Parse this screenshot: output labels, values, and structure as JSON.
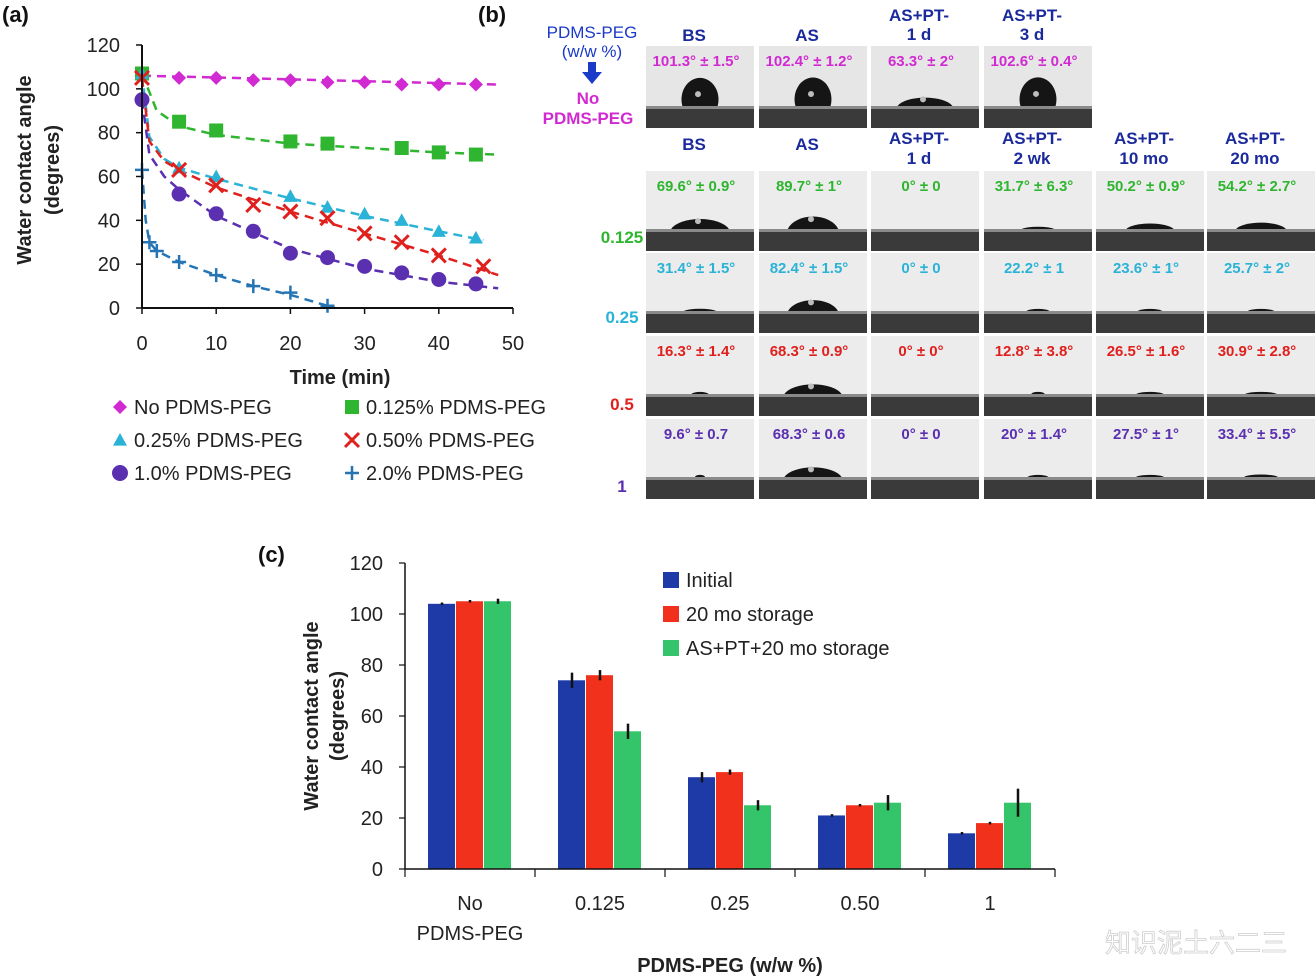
{
  "watermark": "知识泥土六二三",
  "panel_b": {
    "label": "(b)",
    "pdms_header": "PDMS-PEG",
    "pdms_header_unit": "(w/w %)",
    "columns_row1": [
      [
        "BS"
      ],
      [
        "AS"
      ],
      [
        "AS+PT-",
        "1 d"
      ],
      [
        "AS+PT-",
        "3 d"
      ]
    ],
    "columns_row2": [
      [
        "BS"
      ],
      [
        "AS"
      ],
      [
        "AS+PT-",
        "1 d"
      ],
      [
        "AS+PT-",
        "2 wk"
      ],
      [
        "AS+PT-",
        "10 mo"
      ],
      [
        "AS+PT-",
        "20 mo"
      ]
    ],
    "rows": [
      {
        "label": [
          "No",
          "PDMS-PEG"
        ],
        "color": "#d22ad2",
        "values": [
          "101.3° ± 1.5°",
          "102.4° ± 1.2°",
          "63.3° ± 2°",
          "102.6° ± 0.4°"
        ]
      },
      {
        "label": [
          "0.125"
        ],
        "color": "#2fb52f",
        "values": [
          "69.6° ± 0.9°",
          "89.7° ± 1°",
          "0° ± 0",
          "31.7° ± 6.3°",
          "50.2° ± 0.9°",
          "54.2° ± 2.7°"
        ]
      },
      {
        "label": [
          "0.25"
        ],
        "color": "#2ab3d6",
        "values": [
          "31.4° ± 1.5°",
          "82.4° ± 1.5°",
          "0° ± 0",
          "22.2° ± 1",
          "23.6° ± 1°",
          "25.7° ± 2°"
        ]
      },
      {
        "label": [
          "0.5"
        ],
        "color": "#e0201d",
        "values": [
          "16.3° ± 1.4°",
          "68.3° ± 0.9°",
          "0° ± 0°",
          "12.8° ± 3.8°",
          "26.5° ± 1.6°",
          "30.9° ± 2.8°"
        ]
      },
      {
        "label": [
          "1"
        ],
        "color": "#5a2fb0",
        "values": [
          "9.6° ± 0.7",
          "68.3° ± 0.6",
          "0° ± 0",
          "20° ± 1.4°",
          "27.5° ± 1°",
          "33.4° ± 5.5°"
        ]
      }
    ],
    "drop_contact_angles": [
      [
        101.3,
        102.4,
        63.3,
        102.6
      ],
      [
        69.6,
        89.7,
        0,
        31.7,
        50.2,
        54.2
      ],
      [
        31.4,
        82.4,
        0,
        22.2,
        23.6,
        25.7
      ],
      [
        16.3,
        68.3,
        0,
        12.8,
        26.5,
        30.9
      ],
      [
        9.6,
        68.3,
        0,
        20,
        27.5,
        33.4
      ]
    ]
  },
  "chart_data": [
    {
      "panel": "(a)",
      "type": "scatter",
      "xlabel": "Time (min)",
      "ylabel": "Water contact angle",
      "ylabel2": "(degrees)",
      "xlim": [
        0,
        50
      ],
      "ylim": [
        0,
        120
      ],
      "xticks": [
        0,
        10,
        20,
        30,
        40,
        50
      ],
      "yticks": [
        0,
        20,
        40,
        60,
        80,
        100,
        120
      ],
      "legend_placement": "bottom",
      "series": [
        {
          "name": "No PDMS-PEG",
          "color": "#d22ad2",
          "marker": "diamond",
          "x": [
            0,
            5,
            10,
            15,
            20,
            25,
            30,
            35,
            40,
            45
          ],
          "y": [
            106,
            105,
            105,
            104,
            104,
            103,
            103,
            102,
            102,
            102
          ],
          "fit_x": [
            0,
            48
          ],
          "fit_y": [
            106,
            102
          ]
        },
        {
          "name": "0.125% PDMS-PEG",
          "color": "#2fb52f",
          "marker": "square",
          "x": [
            0,
            5,
            10,
            20,
            25,
            35,
            40,
            45
          ],
          "y": [
            107,
            85,
            81,
            76,
            75,
            73,
            71,
            70
          ],
          "fit_x": [
            0,
            2,
            5,
            10,
            15,
            20,
            30,
            40,
            48
          ],
          "fit_y": [
            107,
            90,
            83,
            79,
            77,
            75,
            73,
            71,
            70
          ]
        },
        {
          "name": "0.25% PDMS-PEG",
          "color": "#2ab3d6",
          "marker": "triangle",
          "x": [
            0,
            5,
            10,
            20,
            25,
            30,
            35,
            40,
            45
          ],
          "y": [
            107,
            64,
            60,
            51,
            46,
            43,
            40,
            35,
            32
          ],
          "fit_x": [
            0,
            1,
            3,
            5,
            10,
            20,
            30,
            40,
            46
          ],
          "fit_y": [
            107,
            78,
            68,
            64,
            59,
            50,
            42,
            35,
            31
          ]
        },
        {
          "name": "0.50% PDMS-PEG",
          "color": "#e0201d",
          "marker": "x",
          "x": [
            0,
            5,
            10,
            15,
            20,
            25,
            30,
            35,
            40,
            46
          ],
          "y": [
            105,
            63,
            56,
            47,
            44,
            41,
            34,
            30,
            24,
            19
          ],
          "fit_x": [
            0,
            1,
            3,
            5,
            10,
            20,
            30,
            40,
            48
          ],
          "fit_y": [
            105,
            76,
            67,
            63,
            55,
            44,
            34,
            24,
            15
          ]
        },
        {
          "name": "1.0% PDMS-PEG",
          "color": "#5a2fb0",
          "marker": "circle",
          "x": [
            0,
            5,
            10,
            15,
            20,
            25,
            30,
            35,
            40,
            45
          ],
          "y": [
            95,
            52,
            43,
            35,
            25,
            23,
            19,
            16,
            13,
            11
          ],
          "fit_x": [
            0,
            1,
            3,
            5,
            10,
            20,
            30,
            40,
            48
          ],
          "fit_y": [
            95,
            70,
            60,
            54,
            42,
            27,
            18,
            12,
            9
          ]
        },
        {
          "name": "2.0% PDMS-PEG",
          "color": "#2575b5",
          "marker": "plus",
          "x": [
            0,
            1,
            2,
            5,
            10,
            15,
            20,
            25
          ],
          "y": [
            63,
            30,
            26,
            21,
            15,
            10,
            7,
            1
          ],
          "fit_x": [
            0,
            0.5,
            1,
            2,
            5,
            10,
            15,
            20,
            26
          ],
          "fit_y": [
            63,
            40,
            30,
            26,
            21,
            15,
            10,
            6,
            0
          ]
        }
      ]
    },
    {
      "panel": "(c)",
      "type": "bar",
      "xlabel": "PDMS-PEG (w/w %)",
      "ylabel": "Water contact angle",
      "ylabel2": "(degrees)",
      "ylim": [
        0,
        120
      ],
      "yticks": [
        0,
        20,
        40,
        60,
        80,
        100,
        120
      ],
      "categories": [
        [
          "No",
          "PDMS-PEG"
        ],
        [
          "0.125"
        ],
        [
          "0.25"
        ],
        [
          "0.50"
        ],
        [
          "1"
        ]
      ],
      "legend_placement": "top-right",
      "series": [
        {
          "name": "Initial",
          "color": "#1d3aa6",
          "values": [
            104,
            74,
            36,
            21,
            14
          ],
          "errors": [
            0.5,
            3,
            2,
            0.5,
            0.5
          ]
        },
        {
          "name": "20 mo storage",
          "color": "#f2311c",
          "values": [
            105,
            76,
            38,
            25,
            18
          ],
          "errors": [
            0.5,
            2,
            1,
            0.5,
            0.5
          ]
        },
        {
          "name": "AS+PT+20 mo storage",
          "color": "#34c46a",
          "values": [
            105,
            54,
            25,
            26,
            26
          ],
          "errors": [
            1,
            3,
            2,
            3,
            5.5
          ]
        }
      ]
    }
  ]
}
